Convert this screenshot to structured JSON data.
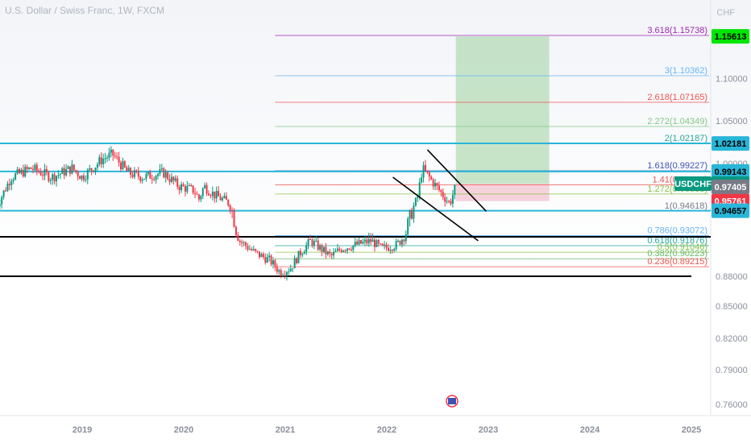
{
  "header": {
    "symbol_text": "U.S. Dollar / Swiss Franc, 1W, FXCM",
    "currency": "CHF"
  },
  "chart_data": {
    "type": "candlestick",
    "y_axis_ticks": [
      1.1,
      1.05,
      1.0,
      0.97,
      0.94,
      0.91,
      0.88,
      0.85,
      0.82,
      0.79,
      0.76
    ],
    "y_axis_tick_labels": [
      "1.10000",
      "1.05000",
      "1.00000",
      "",
      "",
      "",
      "0.88000",
      "0.85000",
      "0.82000",
      "0.79000",
      "0.76000"
    ],
    "x_axis_labels": [
      "2019",
      "2020",
      "2021",
      "2022",
      "2023",
      "2024",
      "2025"
    ],
    "fib_levels": [
      {
        "label": "3.618(1.15738)",
        "value": 1.15738,
        "color": "#9c27b0"
      },
      {
        "label": "3(1.10362)",
        "value": 1.10362,
        "color": "#64b5f6"
      },
      {
        "label": "2.618(1.07165)",
        "value": 1.07165,
        "color": "#ef5350"
      },
      {
        "label": "2.272(1.04349)",
        "value": 1.04349,
        "color": "#81c784"
      },
      {
        "label": "2(1.02187)",
        "value": 1.02187,
        "color": "#26a69a"
      },
      {
        "label": "1.618(0.99227)",
        "value": 0.99227,
        "color": "#3f51b5"
      },
      {
        "label": "1.41(0.97651)",
        "value": 0.97651,
        "color": "#ef5350"
      },
      {
        "label": "1.272(0.96583)",
        "value": 0.96583,
        "color": "#8bc34a"
      },
      {
        "label": "1(0.94618)",
        "value": 0.94618,
        "color": "#787b86"
      },
      {
        "label": "0.786(0.93072)",
        "value": 0.93072,
        "color": "#64b5f6"
      },
      {
        "label": "0.618(0.91876)",
        "value": 0.91876,
        "color": "#26a69a"
      },
      {
        "label": "0.5(0.91046)",
        "value": 0.91046,
        "color": "#8bc34a"
      },
      {
        "label": "0.382(0.90223)",
        "value": 0.90223,
        "color": "#66bb6a"
      },
      {
        "label": "0.236(0.89215)",
        "value": 0.89215,
        "color": "#ef5350"
      }
    ],
    "horizontal_levels": [
      {
        "value": 1.02187,
        "color": "#29b6d8"
      },
      {
        "value": 0.99143,
        "color": "#29b6d8"
      },
      {
        "value": 0.94657,
        "color": "#29b6d8"
      },
      {
        "value": 0.93,
        "color": "#000000"
      },
      {
        "value": 0.88,
        "color": "#000000"
      }
    ],
    "price_tags": [
      {
        "text": "1.15613",
        "value": 1.15613,
        "bg": "#00e600",
        "fg": "#000000"
      },
      {
        "text": "1.02181",
        "value": 1.02181,
        "bg": "#29b6d8",
        "fg": "#000000"
      },
      {
        "text": "0.99143",
        "value": 0.99143,
        "bg": "#29b6d8",
        "fg": "#000000"
      },
      {
        "text": "USDCHF",
        "value": 0.97776,
        "bg": "#089981",
        "fg": "#ffffff"
      },
      {
        "text": "0.97776",
        "value": 0.97776,
        "bg": "#089981",
        "fg": "#ffffff"
      },
      {
        "text": "0.97405",
        "value": 0.97405,
        "bg": "#787b86",
        "fg": "#ffffff"
      },
      {
        "text": "0.95761",
        "value": 0.95761,
        "bg": "#f23645",
        "fg": "#ffffff"
      },
      {
        "text": "0.94657",
        "value": 0.94657,
        "bg": "#29b6d8",
        "fg": "#000000"
      }
    ],
    "position_box": {
      "target": 1.15613,
      "entry": 0.97776,
      "stop": 0.95761
    },
    "colors": {
      "up": "#089981",
      "down": "#f23645"
    }
  }
}
